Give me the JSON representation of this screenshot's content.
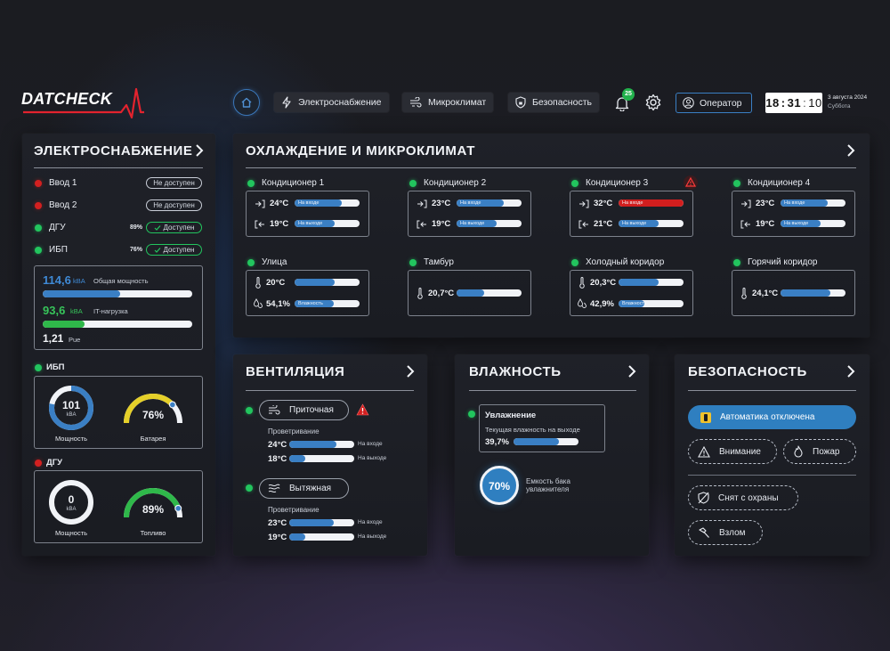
{
  "brand": {
    "logo_text": "DATCHECK",
    "accent": "#e3232e"
  },
  "topnav": {
    "items": [
      {
        "label": "Электроснабжение",
        "icon": "bolt-icon"
      },
      {
        "label": "Микроклимат",
        "icon": "wind-icon"
      },
      {
        "label": "Безопасность",
        "icon": "lock-shield-icon"
      }
    ],
    "notifications_count": "25",
    "operator_label": "Оператор",
    "clock": {
      "hh": "18",
      "mm": "31",
      "ss": "10"
    },
    "date": "3 августа 2024",
    "weekday": "Суббота"
  },
  "power": {
    "title": "ЭЛЕКТРОСНАБЖЕНИЕ",
    "inputs": [
      {
        "name": "Ввод 1",
        "status": "Не доступен",
        "ok": false,
        "percent": ""
      },
      {
        "name": "Ввод 2",
        "status": "Не доступен",
        "ok": false,
        "percent": ""
      },
      {
        "name": "ДГУ",
        "status": "Доступен",
        "ok": true,
        "percent": "89%"
      },
      {
        "name": "ИБП",
        "status": "Доступен",
        "ok": true,
        "percent": "76%"
      }
    ],
    "total": {
      "value": "114,6",
      "unit": "kBA",
      "label": "Общая мощность",
      "fill": 0.52
    },
    "it": {
      "value": "93,6",
      "unit": "kBA",
      "label": "IT-нагрузка",
      "fill": 0.28
    },
    "pue": {
      "value": "1,21",
      "label": "Pue"
    },
    "ups": {
      "title": "ИБП",
      "power_value": "101",
      "power_unit": "kBA",
      "power_label": "Мощность",
      "power_fill": 0.78,
      "battery_value": "76%",
      "battery_label": "Батарея",
      "battery_fill": 0.76
    },
    "dgu": {
      "title": "ДГУ",
      "power_value": "0",
      "power_unit": "kBA",
      "power_label": "Мощность",
      "power_fill": 0,
      "fuel_value": "89%",
      "fuel_label": "Топливо",
      "fuel_fill": 0.89
    }
  },
  "climate": {
    "title": "ОХЛАЖДЕНИЕ И МИКРОКЛИМАТ",
    "conditioners": [
      {
        "name": "Кондиционер 1",
        "alarm": false,
        "in_temp": "24°C",
        "in_label": "На входе",
        "in_fill": 0.73,
        "out_temp": "19°C",
        "out_label": "На выходе",
        "out_fill": 0.62
      },
      {
        "name": "Кондиционер 2",
        "alarm": false,
        "in_temp": "23°C",
        "in_label": "На входе",
        "in_fill": 0.73,
        "out_temp": "19°C",
        "out_label": "На выходе",
        "out_fill": 0.62
      },
      {
        "name": "Кондиционер 3",
        "alarm": true,
        "in_temp": "32°C",
        "in_label": "На входе",
        "in_fill": 1.0,
        "out_temp": "21°C",
        "out_label": "На выходе",
        "out_fill": 0.62
      },
      {
        "name": "Кондиционер 4",
        "alarm": false,
        "in_temp": "23°C",
        "in_label": "На входе",
        "in_fill": 0.73,
        "out_temp": "19°C",
        "out_label": "На выходе",
        "out_fill": 0.62
      }
    ],
    "zones": [
      {
        "name": "Улица",
        "temp": "20°C",
        "temp_fill": 0.62,
        "hum": "54,1%",
        "hum_label": "Влажность",
        "hum_fill": 0.6
      },
      {
        "name": "Тамбур",
        "temp": "20,7°C",
        "temp_fill": 0.42,
        "hum": "",
        "hum_label": "",
        "hum_fill": 0
      },
      {
        "name": "Холодный коридор",
        "temp": "20,3°C",
        "temp_fill": 0.62,
        "hum": "42,9%",
        "hum_label": "Влажность",
        "hum_fill": 0.4
      },
      {
        "name": "Горячий коридор",
        "temp": "24,1°C",
        "temp_fill": 0.77,
        "hum": "",
        "hum_label": "",
        "hum_fill": 0
      }
    ]
  },
  "ventilation": {
    "title": "ВЕНТИЛЯЦИЯ",
    "units": [
      {
        "name": "Приточная",
        "alarm": true,
        "sub": "Проветривание",
        "in_temp": "24°C",
        "in_label": "На входе",
        "in_fill": 0.72,
        "out_temp": "18°C",
        "out_label": "На выходе",
        "out_fill": 0.25
      },
      {
        "name": "Вытяжная",
        "alarm": false,
        "sub": "Проветривание",
        "in_temp": "23°C",
        "in_label": "На входе",
        "in_fill": 0.68,
        "out_temp": "19°C",
        "out_label": "На выходе",
        "out_fill": 0.25
      }
    ]
  },
  "humidity": {
    "title": "ВЛАЖНОСТЬ",
    "unit_name": "Увлажнение",
    "current_label": "Текущая влажность на выходе",
    "current_value": "39,7%",
    "current_fill": 0.7,
    "tank_value": "70%",
    "tank_label_1": "Емкость бака",
    "tank_label_2": "увлажнителя"
  },
  "security": {
    "title": "БЕЗОПАСНОСТЬ",
    "automation_label": "Автоматика отключена",
    "attention_label": "Внимание",
    "fire_label": "Пожар",
    "disarmed_label": "Снят с охраны",
    "breakin_label": "Взлом",
    "accent": "#2f7fc0"
  }
}
